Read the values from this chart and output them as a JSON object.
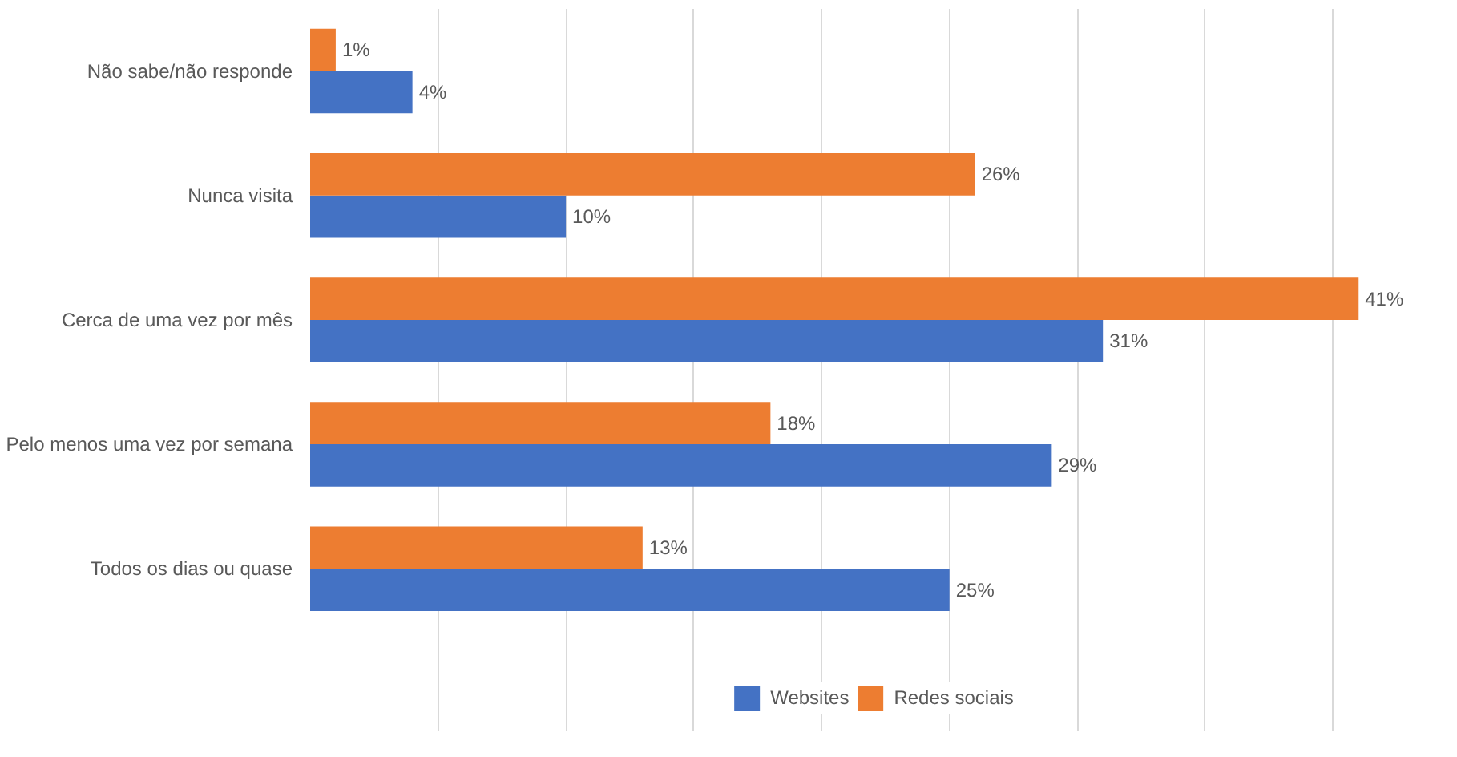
{
  "chart_data": {
    "type": "bar",
    "orientation": "horizontal",
    "categories": [
      "Não sabe/não responde",
      "Nunca visita",
      "Cerca de uma vez por mês",
      "Pelo menos uma vez por semana",
      "Todos os dias ou quase"
    ],
    "series": [
      {
        "name": "Websites",
        "color": "#4472c4",
        "values": [
          4,
          10,
          31,
          29,
          25
        ],
        "value_labels": [
          "4%",
          "10%",
          "31%",
          "29%",
          "25%"
        ]
      },
      {
        "name": "Redes sociais",
        "color": "#ed7d31",
        "values": [
          1,
          26,
          41,
          18,
          13
        ],
        "value_labels": [
          "1%",
          "26%",
          "41%",
          "18%",
          "13%"
        ]
      }
    ],
    "xlim": [
      0,
      41
    ],
    "grid": "x",
    "legend": "bottom",
    "tick_labels": "y"
  }
}
